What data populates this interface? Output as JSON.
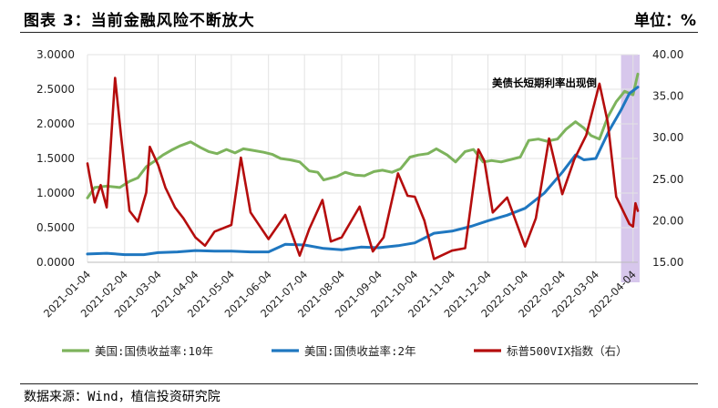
{
  "header": {
    "title": "图表 3：当前金融风险不断放大",
    "unit": "单位：%"
  },
  "footer": {
    "source": "数据来源：Wind，植信投资研究院"
  },
  "colors": {
    "us10y": "#7db35c",
    "us2y": "#1f77c0",
    "vix": "#b50d0d",
    "highlight": "#c9b4e6"
  },
  "chart_data": {
    "type": "line",
    "annotation": "美债长短期利率出现倒",
    "left_axis": {
      "ylim": [
        0,
        3
      ],
      "ticks": [
        "0.0000",
        "0.5000",
        "1.0000",
        "1.5000",
        "2.0000",
        "2.5000",
        "3.0000"
      ]
    },
    "right_axis": {
      "ylim": [
        15,
        40
      ],
      "ticks": [
        "15.00",
        "20.00",
        "25.00",
        "30.00",
        "35.00",
        "40.00"
      ]
    },
    "x_ticks": [
      "2021-01-04",
      "2021-02-04",
      "2021-03-04",
      "2021-04-04",
      "2021-05-04",
      "2021-06-04",
      "2021-07-04",
      "2021-08-04",
      "2021-09-04",
      "2021-10-04",
      "2021-11-04",
      "2021-12-04",
      "2022-01-04",
      "2022-02-04",
      "2022-03-04",
      "2022-04-04"
    ],
    "highlight_period": [
      "2022-03-25",
      "2022-04-08"
    ],
    "series": [
      {
        "name": "美国:国债收益率:10年",
        "axis": "left",
        "points": [
          [
            "2021-01-04",
            0.93
          ],
          [
            "2021-01-10",
            1.08
          ],
          [
            "2021-01-20",
            1.1
          ],
          [
            "2021-01-31",
            1.08
          ],
          [
            "2021-02-08",
            1.17
          ],
          [
            "2021-02-15",
            1.22
          ],
          [
            "2021-02-22",
            1.38
          ],
          [
            "2021-02-28",
            1.45
          ],
          [
            "2021-03-08",
            1.55
          ],
          [
            "2021-03-15",
            1.62
          ],
          [
            "2021-03-22",
            1.68
          ],
          [
            "2021-03-31",
            1.74
          ],
          [
            "2021-04-08",
            1.66
          ],
          [
            "2021-04-15",
            1.6
          ],
          [
            "2021-04-22",
            1.57
          ],
          [
            "2021-04-30",
            1.63
          ],
          [
            "2021-05-07",
            1.58
          ],
          [
            "2021-05-14",
            1.64
          ],
          [
            "2021-05-21",
            1.62
          ],
          [
            "2021-05-31",
            1.59
          ],
          [
            "2021-06-07",
            1.56
          ],
          [
            "2021-06-14",
            1.5
          ],
          [
            "2021-06-22",
            1.48
          ],
          [
            "2021-06-30",
            1.45
          ],
          [
            "2021-07-08",
            1.32
          ],
          [
            "2021-07-15",
            1.3
          ],
          [
            "2021-07-20",
            1.19
          ],
          [
            "2021-07-31",
            1.24
          ],
          [
            "2021-08-07",
            1.3
          ],
          [
            "2021-08-15",
            1.26
          ],
          [
            "2021-08-23",
            1.25
          ],
          [
            "2021-08-31",
            1.31
          ],
          [
            "2021-09-07",
            1.33
          ],
          [
            "2021-09-15",
            1.3
          ],
          [
            "2021-09-22",
            1.35
          ],
          [
            "2021-09-30",
            1.52
          ],
          [
            "2021-10-07",
            1.55
          ],
          [
            "2021-10-15",
            1.57
          ],
          [
            "2021-10-22",
            1.64
          ],
          [
            "2021-10-31",
            1.55
          ],
          [
            "2021-11-07",
            1.45
          ],
          [
            "2021-11-15",
            1.6
          ],
          [
            "2021-11-22",
            1.63
          ],
          [
            "2021-11-30",
            1.45
          ],
          [
            "2021-12-07",
            1.47
          ],
          [
            "2021-12-15",
            1.45
          ],
          [
            "2021-12-22",
            1.48
          ],
          [
            "2021-12-31",
            1.52
          ],
          [
            "2022-01-07",
            1.76
          ],
          [
            "2022-01-15",
            1.78
          ],
          [
            "2022-01-22",
            1.75
          ],
          [
            "2022-01-31",
            1.78
          ],
          [
            "2022-02-07",
            1.92
          ],
          [
            "2022-02-15",
            2.03
          ],
          [
            "2022-02-22",
            1.94
          ],
          [
            "2022-02-28",
            1.83
          ],
          [
            "2022-03-07",
            1.78
          ],
          [
            "2022-03-14",
            2.1
          ],
          [
            "2022-03-21",
            2.32
          ],
          [
            "2022-03-28",
            2.47
          ],
          [
            "2022-04-04",
            2.42
          ],
          [
            "2022-04-08",
            2.72
          ]
        ]
      },
      {
        "name": "美国:国债收益率:2年",
        "axis": "left",
        "points": [
          [
            "2021-01-04",
            0.12
          ],
          [
            "2021-01-20",
            0.13
          ],
          [
            "2021-02-04",
            0.11
          ],
          [
            "2021-02-20",
            0.11
          ],
          [
            "2021-03-04",
            0.14
          ],
          [
            "2021-03-20",
            0.15
          ],
          [
            "2021-04-04",
            0.17
          ],
          [
            "2021-04-20",
            0.16
          ],
          [
            "2021-05-04",
            0.16
          ],
          [
            "2021-05-20",
            0.15
          ],
          [
            "2021-06-04",
            0.15
          ],
          [
            "2021-06-18",
            0.26
          ],
          [
            "2021-07-04",
            0.25
          ],
          [
            "2021-07-20",
            0.2
          ],
          [
            "2021-08-04",
            0.18
          ],
          [
            "2021-08-20",
            0.22
          ],
          [
            "2021-09-04",
            0.21
          ],
          [
            "2021-09-20",
            0.24
          ],
          [
            "2021-10-04",
            0.28
          ],
          [
            "2021-10-20",
            0.42
          ],
          [
            "2021-11-04",
            0.45
          ],
          [
            "2021-11-20",
            0.52
          ],
          [
            "2021-12-04",
            0.6
          ],
          [
            "2021-12-20",
            0.68
          ],
          [
            "2022-01-04",
            0.78
          ],
          [
            "2022-01-20",
            1.0
          ],
          [
            "2022-02-04",
            1.3
          ],
          [
            "2022-02-15",
            1.55
          ],
          [
            "2022-02-22",
            1.48
          ],
          [
            "2022-03-04",
            1.5
          ],
          [
            "2022-03-15",
            1.9
          ],
          [
            "2022-03-25",
            2.2
          ],
          [
            "2022-04-01",
            2.44
          ],
          [
            "2022-04-08",
            2.53
          ]
        ]
      },
      {
        "name": "标普500VIX指数（右）",
        "axis": "right",
        "points": [
          [
            "2021-01-04",
            26.9
          ],
          [
            "2021-01-06",
            25.3
          ],
          [
            "2021-01-10",
            22.2
          ],
          [
            "2021-01-15",
            24.3
          ],
          [
            "2021-01-20",
            21.6
          ],
          [
            "2021-01-27",
            37.2
          ],
          [
            "2021-02-01",
            30.3
          ],
          [
            "2021-02-08",
            21.2
          ],
          [
            "2021-02-15",
            19.9
          ],
          [
            "2021-02-22",
            23.4
          ],
          [
            "2021-02-25",
            28.9
          ],
          [
            "2021-03-04",
            26.7
          ],
          [
            "2021-03-10",
            24.0
          ],
          [
            "2021-03-18",
            21.6
          ],
          [
            "2021-03-25",
            20.3
          ],
          [
            "2021-04-04",
            18.0
          ],
          [
            "2021-04-12",
            17.0
          ],
          [
            "2021-04-20",
            18.7
          ],
          [
            "2021-05-04",
            19.5
          ],
          [
            "2021-05-12",
            27.6
          ],
          [
            "2021-05-20",
            21.0
          ],
          [
            "2021-06-04",
            17.8
          ],
          [
            "2021-06-18",
            20.7
          ],
          [
            "2021-06-30",
            15.8
          ],
          [
            "2021-07-08",
            19.0
          ],
          [
            "2021-07-19",
            22.5
          ],
          [
            "2021-07-26",
            17.5
          ],
          [
            "2021-08-04",
            18.0
          ],
          [
            "2021-08-19",
            21.7
          ],
          [
            "2021-08-30",
            16.3
          ],
          [
            "2021-09-08",
            18.0
          ],
          [
            "2021-09-20",
            25.7
          ],
          [
            "2021-09-28",
            23.0
          ],
          [
            "2021-10-04",
            22.9
          ],
          [
            "2021-10-12",
            20.0
          ],
          [
            "2021-10-20",
            15.4
          ],
          [
            "2021-11-04",
            16.4
          ],
          [
            "2021-11-15",
            16.7
          ],
          [
            "2021-11-26",
            28.6
          ],
          [
            "2021-12-01",
            27.2
          ],
          [
            "2021-12-08",
            21.0
          ],
          [
            "2021-12-20",
            22.8
          ],
          [
            "2022-01-04",
            16.9
          ],
          [
            "2022-01-13",
            20.3
          ],
          [
            "2022-01-24",
            29.9
          ],
          [
            "2022-02-04",
            23.2
          ],
          [
            "2022-02-14",
            27.4
          ],
          [
            "2022-02-24",
            30.3
          ],
          [
            "2022-03-07",
            36.5
          ],
          [
            "2022-03-14",
            31.8
          ],
          [
            "2022-03-21",
            22.9
          ],
          [
            "2022-03-28",
            20.8
          ],
          [
            "2022-04-01",
            19.6
          ],
          [
            "2022-04-04",
            19.3
          ],
          [
            "2022-04-06",
            22.1
          ],
          [
            "2022-04-08",
            21.2
          ]
        ]
      }
    ]
  }
}
